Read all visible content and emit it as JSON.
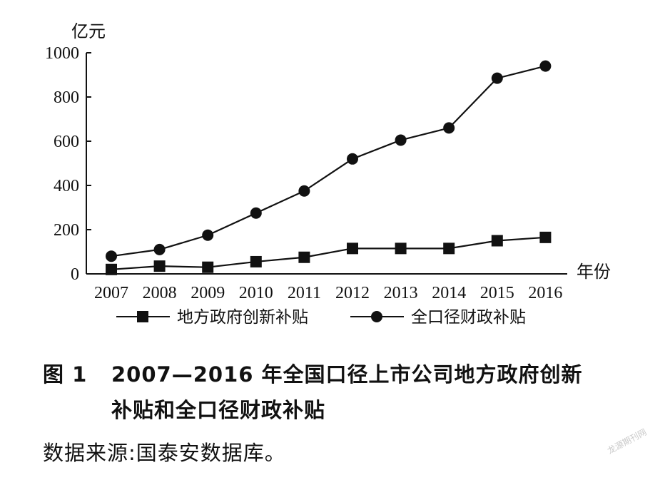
{
  "chart_data": {
    "type": "line",
    "categories": [
      "2007",
      "2008",
      "2009",
      "2010",
      "2011",
      "2012",
      "2013",
      "2014",
      "2015",
      "2016"
    ],
    "series": [
      {
        "name": "地方政府创新补贴",
        "marker": "square",
        "values": [
          20,
          35,
          30,
          55,
          75,
          115,
          115,
          115,
          150,
          165
        ]
      },
      {
        "name": "全口径财政补贴",
        "marker": "circle",
        "values": [
          80,
          110,
          175,
          275,
          375,
          520,
          605,
          660,
          885,
          940
        ]
      }
    ],
    "ylabel": "亿元",
    "xlabel": "年份",
    "ylim": [
      0,
      1000
    ],
    "yticks": [
      0,
      200,
      400,
      600,
      800,
      1000
    ],
    "grid": false,
    "legend": "bottom",
    "line_color": "#111111"
  },
  "caption": {
    "figure_no": "图 1",
    "line1": "2007—2016 年全国口径上市公司地方政府创新",
    "line2": "补贴和全口径财政补贴"
  },
  "source": "数据来源:国泰安数据库。",
  "watermark": "龙源期刊网"
}
